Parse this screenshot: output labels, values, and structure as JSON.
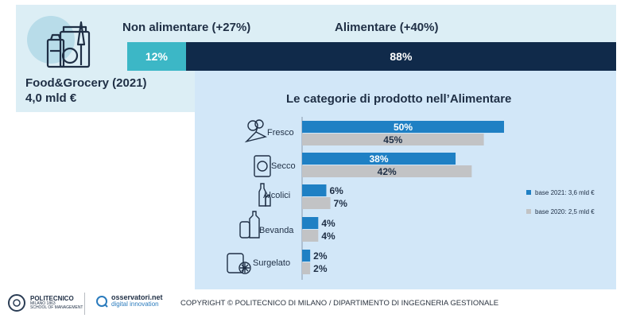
{
  "header": {
    "non_label": "Non alimentare (+27%)",
    "ali_label": "Alimentare (+40%)"
  },
  "split": {
    "non_share": 12,
    "ali_share": 88,
    "non_text": "12%",
    "ali_text": "88%",
    "non_color": "#3cb7c6",
    "ali_color": "#102a4a"
  },
  "food_grocery": {
    "title": "Food&Grocery (2021)",
    "value": "4,0 mld €",
    "icon": "grocery-bag-icon"
  },
  "chart_data": {
    "type": "bar",
    "orientation": "horizontal",
    "title": "Le categorie di prodotto nell’Alimentare",
    "categories": [
      "Fresco",
      "Secco",
      "Alcolici",
      "Bevanda",
      "Surgelato"
    ],
    "category_icons": [
      "vegetables-icon",
      "packaged-food-icon",
      "bottles-icon",
      "beverage-icon",
      "frozen-food-icon"
    ],
    "series": [
      {
        "name": "base 2021: 3,6 mld €",
        "values": [
          50,
          38,
          6,
          4,
          2
        ],
        "labels": [
          "50%",
          "38%",
          "6%",
          "4%",
          "2%"
        ],
        "color": "#1f80c4"
      },
      {
        "name": "base 2020: 2,5 mld €",
        "values": [
          45,
          42,
          7,
          4,
          2
        ],
        "labels": [
          "45%",
          "42%",
          "7%",
          "4%",
          "2%"
        ],
        "color": "#c2c3c5"
      }
    ],
    "xlim": [
      0,
      50
    ],
    "legend_position": "right"
  },
  "footer": {
    "polimi_name": "POLITECNICO",
    "polimi_sub1": "MILANO 1863",
    "polimi_sub2": "SCHOOL OF MANAGEMENT",
    "osserv_name": "osservatori.net",
    "osserv_sub": "digital innovation",
    "copyright": "COPYRIGHT © POLITECNICO DI MILANO / DIPARTIMENTO DI INGEGNERIA GESTIONALE"
  }
}
